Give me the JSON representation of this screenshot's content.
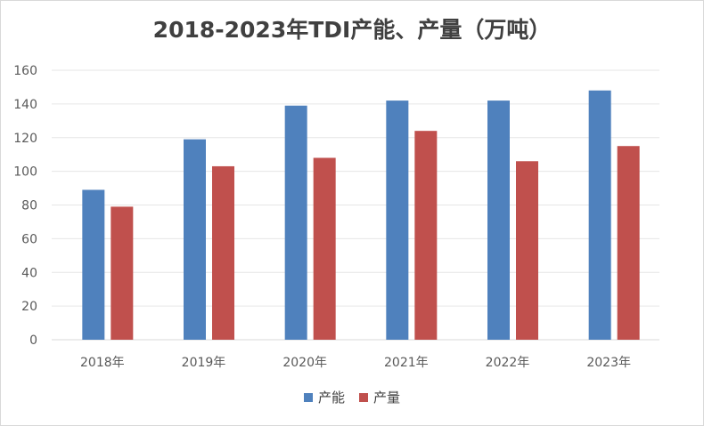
{
  "chart_data": {
    "type": "bar",
    "title": "2018-2023年TDI产能、产量（万吨）",
    "categories": [
      "2018年",
      "2019年",
      "2020年",
      "2021年",
      "2022年",
      "2023年"
    ],
    "series": [
      {
        "name": "产能",
        "color": "#4f81bd",
        "values": [
          89,
          119,
          139,
          142,
          142,
          148
        ]
      },
      {
        "name": "产量",
        "color": "#c0504d",
        "values": [
          79,
          103,
          108,
          124,
          106,
          115
        ]
      }
    ],
    "ylim": [
      0,
      160
    ],
    "yticks": [
      0,
      20,
      40,
      60,
      80,
      100,
      120,
      140,
      160
    ],
    "grid": true,
    "legend_position": "bottom"
  }
}
